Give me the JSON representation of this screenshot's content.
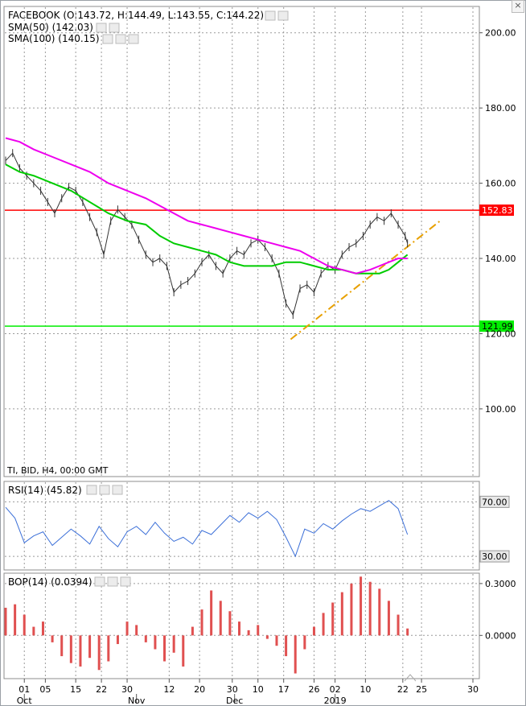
{
  "window": {
    "close_icon": "close-icon"
  },
  "chart_data": [
    {
      "type": "line",
      "pane": "price",
      "title": "FACEBOOK (O:143.72, H:144.49, L:143.55, C:144.22)",
      "indicator_labels": [
        "SMA(50) (142.03)",
        "SMA(100) (140.15)"
      ],
      "footer_label": "TI, BID, H4, 00:00 GMT",
      "ylim": [
        82,
        207
      ],
      "yticks": [
        "200.00",
        "180.00",
        "160.00",
        "140.00",
        "120.00",
        "100.00"
      ],
      "ytick_values": [
        200,
        180,
        160,
        140,
        120,
        100
      ],
      "grid": true,
      "x_ticks": [
        "01",
        "05",
        "15",
        "22",
        "30",
        "12",
        "20",
        "30",
        "10",
        "17",
        "26",
        "02",
        "10",
        "22",
        "25",
        "30"
      ],
      "x_month_labels": [
        "Oct",
        "Nov",
        "Dec",
        "2019"
      ],
      "x_range": [
        0,
        100
      ],
      "x_tick_positions": [
        4,
        8.5,
        15,
        20.5,
        26,
        35,
        41.5,
        48.5,
        54,
        59.5,
        66,
        70.5,
        77,
        85,
        89,
        100
      ],
      "x_month_positions": [
        4,
        28,
        49,
        70.5
      ],
      "horizontal_levels": [
        {
          "name": "resistance",
          "value": 152.83,
          "label": "152.83",
          "color": "#ff0000"
        },
        {
          "name": "support",
          "value": 121.99,
          "label": "121.99",
          "color": "#00ee00"
        }
      ],
      "trendline": {
        "color": "#e8a000",
        "points": [
          [
            61,
            118.5
          ],
          [
            93,
            150
          ]
        ]
      },
      "series": [
        {
          "name": "Price",
          "color": "#333333",
          "x": [
            0,
            1.5,
            3,
            4.5,
            6,
            7.5,
            9,
            10.5,
            12,
            13.5,
            15,
            16.5,
            18,
            19.5,
            21,
            22.5,
            24,
            25.5,
            27,
            28.5,
            30,
            31.5,
            33,
            34.5,
            36,
            37.5,
            39,
            40.5,
            42,
            43.5,
            45,
            46.5,
            48,
            49.5,
            51,
            52.5,
            54,
            55.5,
            57,
            58.5,
            60,
            61.5,
            63,
            64.5,
            66,
            67.5,
            69,
            70.5,
            72,
            73.5,
            75,
            76.5,
            78,
            79.5,
            81,
            82.5,
            84,
            85.5,
            86
          ],
          "values": [
            166,
            168,
            164,
            162,
            160,
            158,
            155,
            152,
            156,
            159,
            158,
            155,
            151,
            147,
            141,
            150,
            153,
            151,
            149,
            145,
            141,
            139,
            140,
            138,
            131,
            133,
            134,
            136,
            139,
            141,
            138,
            136,
            140,
            142,
            141,
            144,
            145,
            143,
            140,
            136,
            128,
            125,
            132,
            133,
            131,
            136,
            138,
            137,
            141,
            143,
            144,
            146,
            149,
            151,
            150,
            152,
            149,
            146,
            144
          ]
        },
        {
          "name": "SMA(50)",
          "color": "#00cc00",
          "x": [
            0,
            3,
            6,
            10,
            14,
            18,
            22,
            26,
            30,
            33,
            36,
            39,
            42,
            45,
            48,
            51,
            54,
            57,
            60,
            63,
            66,
            69,
            72,
            75,
            78,
            80,
            82,
            84,
            86
          ],
          "values": [
            165,
            163,
            162,
            160,
            158,
            155,
            152,
            150,
            149,
            146,
            144,
            143,
            142,
            141,
            139,
            138,
            138,
            138,
            139,
            139,
            138,
            137,
            137,
            136,
            136,
            136,
            137,
            139,
            141
          ]
        },
        {
          "name": "SMA(100)",
          "color": "#ee00ee",
          "x": [
            0,
            3,
            6,
            10,
            14,
            18,
            22,
            26,
            30,
            33,
            36,
            39,
            42,
            45,
            48,
            51,
            54,
            57,
            60,
            63,
            66,
            69,
            72,
            75,
            78,
            80,
            82,
            84,
            86
          ],
          "values": [
            172,
            171,
            169,
            167,
            165,
            163,
            160,
            158,
            156,
            154,
            152,
            150,
            149,
            148,
            147,
            146,
            145,
            144,
            143,
            142,
            140,
            138,
            137,
            136,
            137,
            138,
            139,
            140,
            140
          ]
        }
      ]
    },
    {
      "type": "line",
      "pane": "rsi",
      "title": "RSI(14) (45.82)",
      "ylim": [
        20,
        85
      ],
      "levels": [
        {
          "value": 70,
          "label": "70.00"
        },
        {
          "value": 30,
          "label": "30.00"
        }
      ],
      "series": [
        {
          "name": "RSI(14)",
          "color": "#3b6fd8",
          "x": [
            0,
            2,
            4,
            6,
            8,
            10,
            12,
            14,
            16,
            18,
            20,
            22,
            24,
            26,
            28,
            30,
            32,
            34,
            36,
            38,
            40,
            42,
            44,
            46,
            48,
            50,
            52,
            54,
            56,
            58,
            60,
            62,
            64,
            66,
            68,
            70,
            72,
            74,
            76,
            78,
            80,
            82,
            84,
            86
          ],
          "values": [
            66,
            58,
            40,
            45,
            48,
            38,
            44,
            50,
            45,
            39,
            52,
            43,
            37,
            48,
            52,
            46,
            55,
            47,
            41,
            44,
            39,
            49,
            46,
            53,
            60,
            55,
            62,
            58,
            63,
            57,
            44,
            30,
            50,
            47,
            54,
            50,
            56,
            61,
            65,
            63,
            67,
            71,
            65,
            46
          ]
        }
      ]
    },
    {
      "type": "bar",
      "pane": "bop",
      "title": "BOP(14) (0.0394)",
      "ylim": [
        -0.25,
        0.36
      ],
      "yticks": [
        "0.3000",
        "0.0000"
      ],
      "ytick_values": [
        0.3,
        0
      ],
      "series": [
        {
          "name": "BOP(14)",
          "color": "#e05050",
          "x": [
            0,
            2,
            4,
            6,
            8,
            10,
            12,
            14,
            16,
            18,
            20,
            22,
            24,
            26,
            28,
            30,
            32,
            34,
            36,
            38,
            40,
            42,
            44,
            46,
            48,
            50,
            52,
            54,
            56,
            58,
            60,
            62,
            64,
            66,
            68,
            70,
            72,
            74,
            76,
            78,
            80,
            82,
            84,
            86
          ],
          "values": [
            0.16,
            0.18,
            0.12,
            0.05,
            0.08,
            -0.04,
            -0.12,
            -0.16,
            -0.18,
            -0.13,
            -0.2,
            -0.15,
            -0.05,
            0.08,
            0.06,
            -0.04,
            -0.08,
            -0.15,
            -0.1,
            -0.18,
            0.05,
            0.15,
            0.26,
            0.2,
            0.14,
            0.08,
            0.03,
            0.06,
            -0.02,
            -0.06,
            -0.12,
            -0.22,
            -0.08,
            0.05,
            0.13,
            0.19,
            0.25,
            0.3,
            0.34,
            0.31,
            0.27,
            0.2,
            0.12,
            0.04
          ]
        }
      ]
    }
  ]
}
